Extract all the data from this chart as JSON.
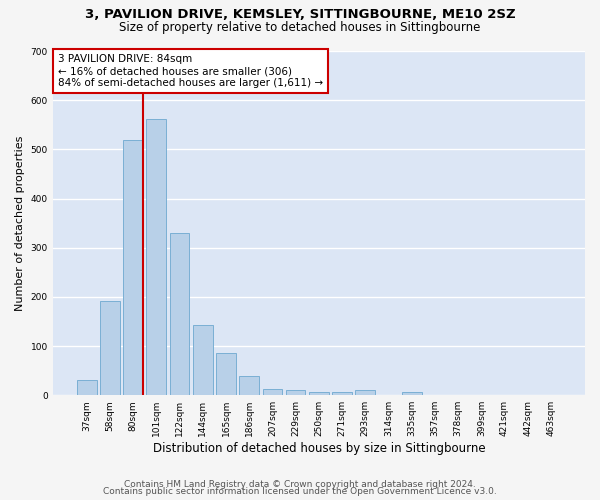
{
  "title": "3, PAVILION DRIVE, KEMSLEY, SITTINGBOURNE, ME10 2SZ",
  "subtitle": "Size of property relative to detached houses in Sittingbourne",
  "xlabel": "Distribution of detached houses by size in Sittingbourne",
  "ylabel": "Number of detached properties",
  "categories": [
    "37sqm",
    "58sqm",
    "80sqm",
    "101sqm",
    "122sqm",
    "144sqm",
    "165sqm",
    "186sqm",
    "207sqm",
    "229sqm",
    "250sqm",
    "271sqm",
    "293sqm",
    "314sqm",
    "335sqm",
    "357sqm",
    "378sqm",
    "399sqm",
    "421sqm",
    "442sqm",
    "463sqm"
  ],
  "values": [
    30,
    191,
    519,
    561,
    329,
    143,
    86,
    40,
    13,
    10,
    7,
    7,
    10,
    0,
    7,
    0,
    0,
    0,
    0,
    0,
    0
  ],
  "bar_color": "#b8d0e8",
  "bar_edge_color": "#7aafd4",
  "vline_x_index": 2.43,
  "vline_color": "#cc0000",
  "annotation_text": "3 PAVILION DRIVE: 84sqm\n← 16% of detached houses are smaller (306)\n84% of semi-detached houses are larger (1,611) →",
  "annotation_box_edge_color": "#cc0000",
  "annotation_box_face_color": "#ffffff",
  "ylim": [
    0,
    700
  ],
  "yticks": [
    0,
    100,
    200,
    300,
    400,
    500,
    600,
    700
  ],
  "plot_bg_color": "#dce6f5",
  "fig_bg_color": "#f5f5f5",
  "grid_color": "#ffffff",
  "footer_line1": "Contains HM Land Registry data © Crown copyright and database right 2024.",
  "footer_line2": "Contains public sector information licensed under the Open Government Licence v3.0.",
  "title_fontsize": 9.5,
  "subtitle_fontsize": 8.5,
  "xlabel_fontsize": 8.5,
  "ylabel_fontsize": 8,
  "tick_fontsize": 6.5,
  "annotation_fontsize": 7.5,
  "footer_fontsize": 6.5
}
